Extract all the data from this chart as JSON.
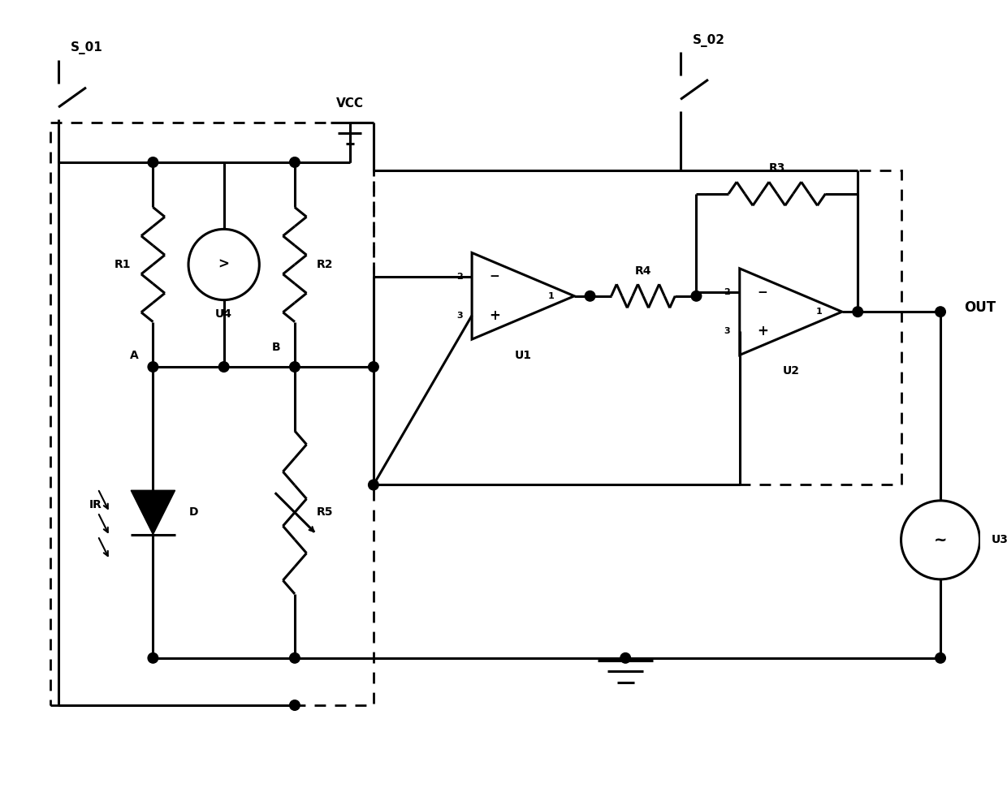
{
  "bg_color": "#ffffff",
  "line_color": "#000000",
  "lw": 2.2,
  "fig_w": 12.4,
  "fig_h": 9.71,
  "dpi": 100,
  "xlim": [
    0,
    124
  ],
  "ylim": [
    0,
    97.1
  ]
}
